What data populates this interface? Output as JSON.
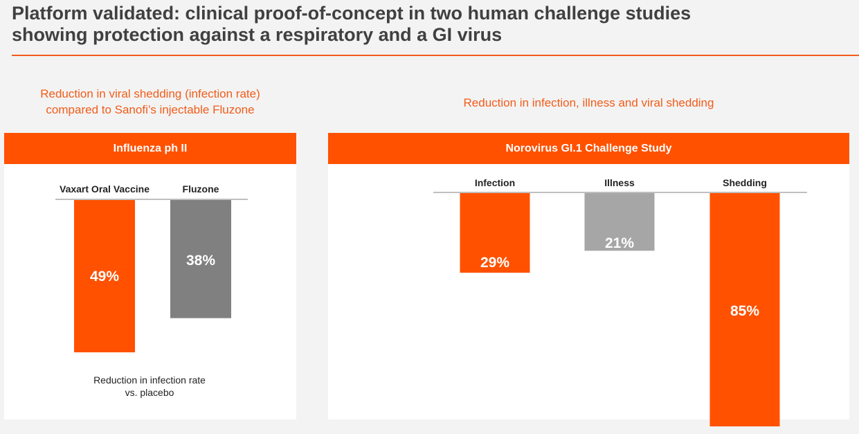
{
  "title_line1": "Platform validated: clinical proof-of-concept in two human challenge studies",
  "title_line2": "showing protection against a respiratory and a GI virus",
  "left": {
    "subtitle_line1": "Reduction in viral shedding (infection rate)",
    "subtitle_line2": "compared to Sanofi’s injectable Fluzone",
    "header": "Influenza ph II",
    "footnote_line1": "Reduction in infection rate",
    "footnote_line2": "vs. placebo"
  },
  "right": {
    "subtitle": "Reduction in infection, illness and viral shedding",
    "header": "Norovirus GI.1 Challenge Study"
  },
  "colors": {
    "orange": "#ff5100",
    "dark_gray": "#808080",
    "light_gray": "#a6a6a6"
  },
  "chart_data": [
    {
      "type": "bar",
      "title": "Influenza ph II",
      "categories": [
        "Vaxart Oral Vaccine",
        "Fluzone"
      ],
      "values": [
        49,
        38
      ],
      "labels": [
        "49%",
        "38%"
      ],
      "colors": [
        "#ff5100",
        "#808080"
      ],
      "ylabel": "Reduction in infection rate vs. placebo",
      "orientation": "downward",
      "ylim": [
        0,
        50
      ]
    },
    {
      "type": "bar",
      "title": "Norovirus GI.1 Challenge Study",
      "categories": [
        "Infection",
        "Illness",
        "Shedding"
      ],
      "values": [
        29,
        21,
        85
      ],
      "labels": [
        "29%",
        "21%",
        "85%"
      ],
      "colors": [
        "#ff5100",
        "#a6a6a6",
        "#ff5100"
      ],
      "orientation": "downward",
      "ylim": [
        0,
        85
      ]
    }
  ]
}
